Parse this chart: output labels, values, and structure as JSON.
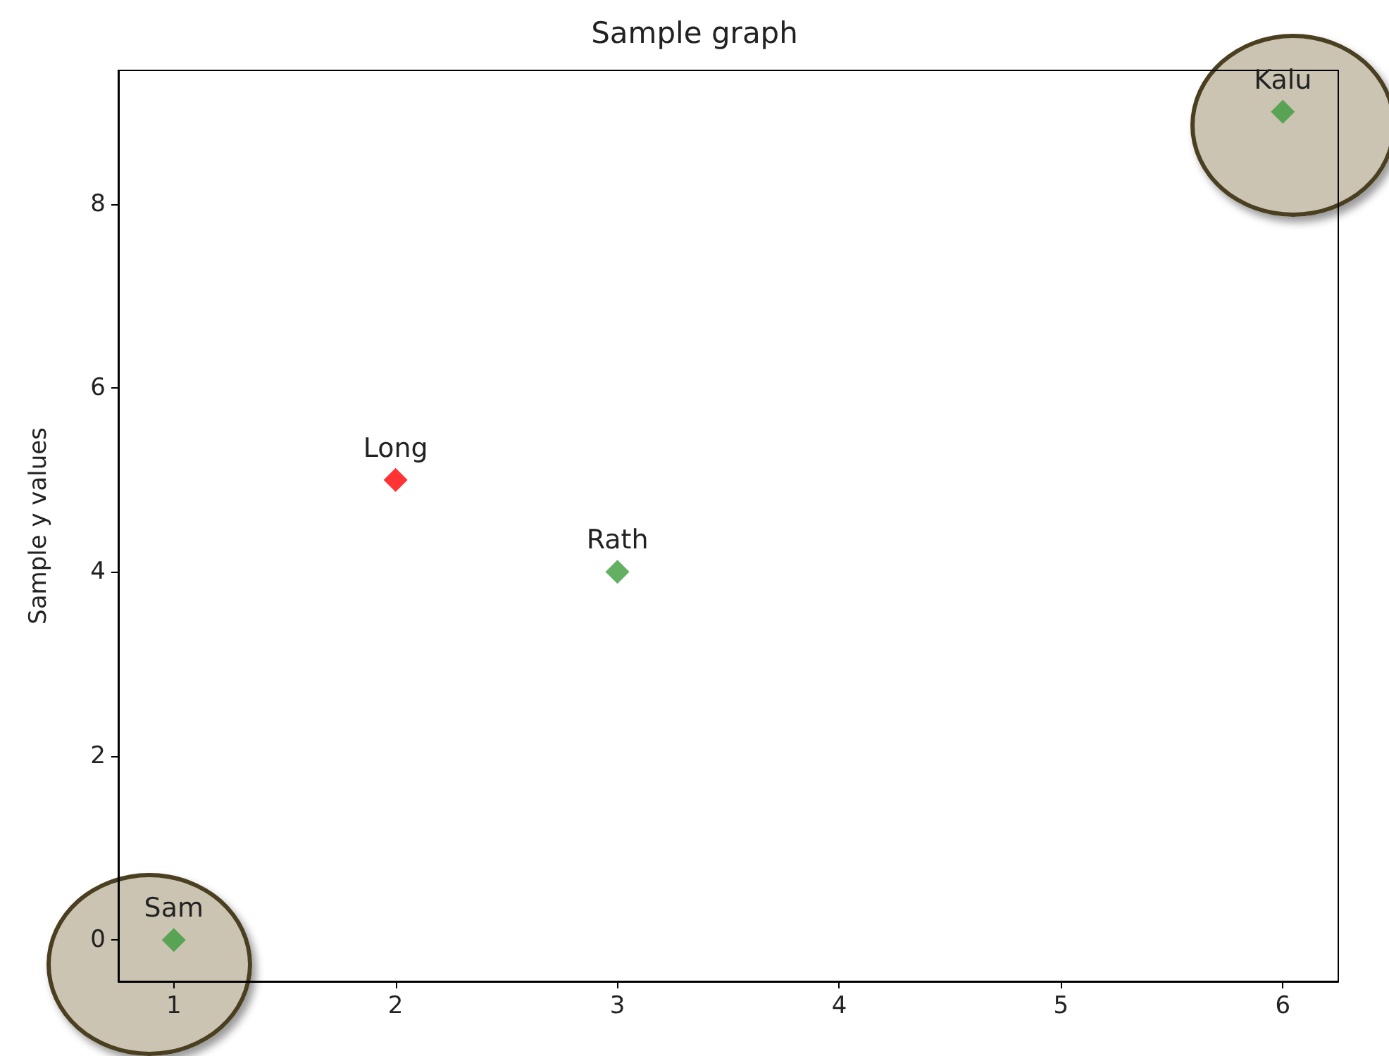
{
  "chart_data": {
    "type": "scatter",
    "title": "Sample graph",
    "ylabel": "Sample y values",
    "x": [
      1,
      2,
      3,
      6
    ],
    "values": [
      0,
      5,
      4,
      9
    ],
    "colors": [
      "#3c9c3c",
      "#ff0000",
      "#3c9c3c",
      "#3c9c3c"
    ],
    "marker": "diamond",
    "xlim": [
      0.75,
      6.25
    ],
    "xticks": [
      1,
      2,
      3,
      4,
      5,
      6
    ],
    "ylim": [
      -0.45,
      9.45
    ],
    "yticks": [
      0,
      2,
      4,
      6,
      8
    ],
    "grid": false,
    "annotations": [
      {
        "text": "Sam",
        "x": 1,
        "y": 0
      },
      {
        "text": "Long",
        "x": 2,
        "y": 5
      },
      {
        "text": "Rath",
        "x": 3,
        "y": 4
      },
      {
        "text": "Kalu",
        "x": 6,
        "y": 9
      }
    ]
  }
}
